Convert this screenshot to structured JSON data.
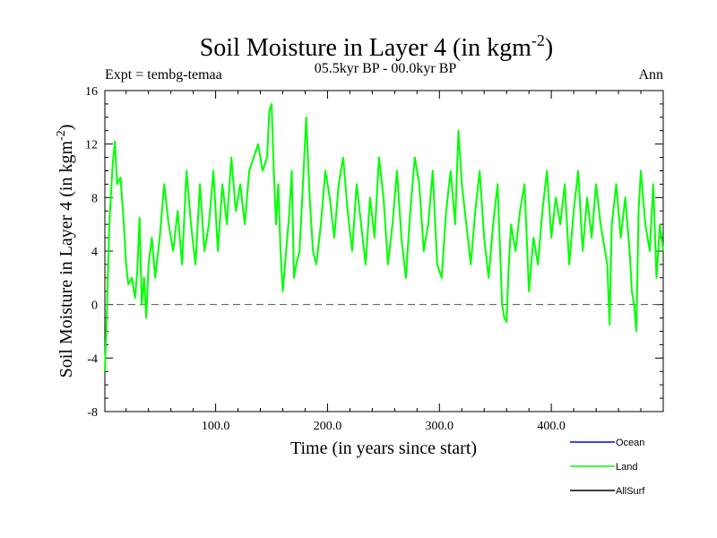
{
  "chart_data": {
    "type": "line",
    "title": "Soil Moisture in Layer 4 (in kgm",
    "title_sup": "-2",
    "title_close": ")",
    "subtitle": "05.5kyr BP - 00.0kyr BP",
    "left_label": "Expt = tembg-temaa",
    "right_label": "Ann",
    "xlabel": "Time (in years since start)",
    "ylabel": "Soil Moisture in Layer 4 (in kgm",
    "ylabel_sup": "-2",
    "ylabel_close": ")",
    "xlim": [
      1,
      500
    ],
    "ylim": [
      -8,
      16
    ],
    "x_ticks": [
      100,
      200,
      300,
      400
    ],
    "x_tick_labels": [
      "100.0",
      "200.0",
      "300.0",
      "400.0"
    ],
    "y_ticks": [
      -8,
      -4,
      0,
      4,
      8,
      12,
      16
    ],
    "y_tick_labels": [
      "-8",
      "-4",
      "0",
      "4",
      "8",
      "12",
      "16"
    ],
    "zero_line": 0,
    "legend": {
      "position": "bottom-right",
      "entries": [
        {
          "name": "Ocean",
          "color": "#0000ff"
        },
        {
          "name": "Land",
          "color": "#00ff00"
        },
        {
          "name": "AllSurf",
          "color": "#000000"
        }
      ]
    },
    "series": [
      {
        "name": "Land",
        "color": "#00ff00",
        "x": [
          1,
          3,
          5,
          8,
          10,
          12,
          15,
          18,
          20,
          22,
          25,
          28,
          30,
          32,
          34,
          36,
          38,
          40,
          43,
          46,
          50,
          54,
          58,
          62,
          66,
          70,
          74,
          78,
          82,
          86,
          90,
          94,
          98,
          102,
          106,
          110,
          114,
          118,
          122,
          126,
          130,
          134,
          138,
          142,
          146,
          148,
          150,
          152,
          154,
          156,
          158,
          160,
          162,
          164,
          166,
          168,
          170,
          172,
          175,
          178,
          181,
          184,
          187,
          190,
          194,
          198,
          202,
          206,
          210,
          214,
          218,
          222,
          226,
          230,
          234,
          238,
          242,
          246,
          250,
          254,
          258,
          262,
          266,
          270,
          274,
          278,
          282,
          286,
          290,
          294,
          298,
          302,
          306,
          310,
          314,
          317,
          320,
          324,
          328,
          332,
          336,
          340,
          344,
          348,
          352,
          356,
          358,
          360,
          362,
          364,
          368,
          372,
          376,
          380,
          384,
          388,
          392,
          396,
          400,
          404,
          408,
          412,
          416,
          420,
          424,
          428,
          432,
          436,
          440,
          444,
          448,
          450,
          452,
          454,
          458,
          462,
          466,
          470,
          472,
          474,
          476,
          478,
          480,
          484,
          488,
          491,
          494,
          497,
          500
        ],
        "values": [
          -5,
          0,
          6,
          10.5,
          12.2,
          9,
          9.5,
          6,
          3,
          1.5,
          2,
          0.5,
          2.5,
          6.5,
          0,
          2,
          -1,
          3,
          5,
          2,
          5,
          9,
          6,
          4,
          7,
          3,
          10,
          6,
          3,
          9,
          4,
          6,
          10,
          4,
          9,
          6,
          11,
          7,
          9,
          6,
          10,
          11,
          12,
          10,
          11,
          14.5,
          15,
          10,
          6,
          9,
          4,
          1,
          3,
          5,
          7,
          10,
          2,
          3,
          4,
          9,
          14,
          8,
          4,
          3,
          6,
          10,
          8,
          5,
          9,
          11,
          7,
          4,
          9,
          6,
          3,
          8,
          5,
          11,
          8,
          3,
          6,
          10,
          5,
          2,
          7,
          11,
          9,
          4,
          6,
          10,
          3,
          2,
          7,
          10,
          6,
          13,
          9,
          6,
          3,
          7,
          10,
          5,
          2,
          6,
          9,
          0,
          -1,
          -1.3,
          3,
          6,
          4,
          7,
          9,
          1,
          5,
          3,
          7,
          10,
          5,
          8,
          6,
          9,
          3,
          7,
          10,
          4,
          8,
          5,
          9,
          6,
          4,
          3,
          -1.5,
          6,
          9,
          5,
          8,
          4,
          1,
          0,
          -2,
          7,
          10,
          6,
          4,
          9,
          2,
          6,
          4
        ]
      }
    ]
  }
}
